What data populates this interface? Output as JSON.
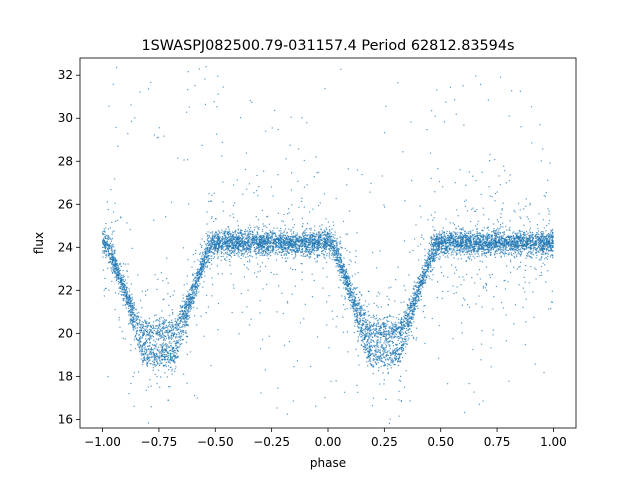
{
  "chart_data": {
    "type": "scatter",
    "title": "1SWASPJ082500.79-031157.4 Period 62812.83594s",
    "xlabel": "phase",
    "ylabel": "flux",
    "xlim": [
      -1.1,
      1.1
    ],
    "ylim": [
      15.6,
      32.8
    ],
    "xticks": [
      -1.0,
      -0.75,
      -0.5,
      -0.25,
      0.0,
      0.25,
      0.5,
      0.75,
      1.0
    ],
    "xtick_labels": [
      "−1.00",
      "−0.75",
      "−0.50",
      "−0.25",
      "0.00",
      "0.25",
      "0.50",
      "0.75",
      "1.00"
    ],
    "yticks": [
      16,
      18,
      20,
      22,
      24,
      26,
      28,
      30,
      32
    ],
    "ytick_labels": [
      "16",
      "18",
      "20",
      "22",
      "24",
      "26",
      "28",
      "30",
      "32"
    ],
    "grid": false,
    "legend": "none",
    "point_color": "#1f77b4",
    "baseline_flux": 24.2,
    "eclipses": [
      {
        "center_phase": -0.75,
        "branches": [
          {
            "min_flux": 20.1,
            "half_width": 0.24
          },
          {
            "min_flux": 19.0,
            "half_width": 0.22
          }
        ]
      },
      {
        "center_phase": 0.25,
        "branches": [
          {
            "min_flux": 20.1,
            "half_width": 0.24
          },
          {
            "min_flux": 19.0,
            "half_width": 0.22
          }
        ]
      }
    ]
  }
}
